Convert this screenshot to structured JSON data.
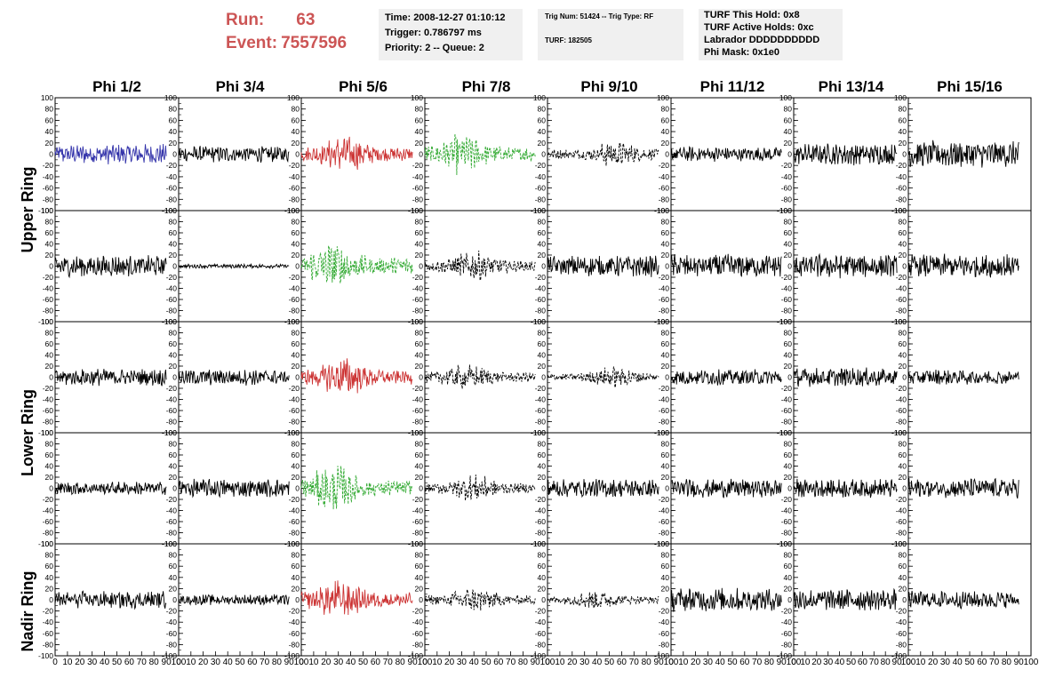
{
  "header": {
    "run_label": "Run:",
    "run_value": "63",
    "event_label": "Event:",
    "event_value": "7557596"
  },
  "info_box_1": {
    "time": "Time: 2008-12-27 01:10:12",
    "trigger": "Trigger: 0.786797 ms",
    "priority": "Priority: 2 -- Queue: 2"
  },
  "info_box_2": {
    "trig": "Trig Num: 51424 -- Trig Type: RF",
    "turf": "TURF: 182505"
  },
  "info_box_3": {
    "hold": "TURF This Hold: 0x8",
    "active": "TURF Active Holds: 0xc",
    "labrador": "Labrador DDDDDDDDDD",
    "mask": "Phi Mask: 0x1e0"
  },
  "colors": {
    "blue": "#3333aa",
    "red": "#cc3333",
    "green": "#33aa33",
    "black": "#000000"
  },
  "chart_data": {
    "type": "line",
    "column_titles": [
      "Phi 1/2",
      "Phi 3/4",
      "Phi 5/6",
      "Phi 7/8",
      "Phi 9/10",
      "Phi 11/12",
      "Phi 13/14",
      "Phi 15/16"
    ],
    "row_labels": [
      "Upper Ring",
      "Lower Ring",
      "Nadir Ring"
    ],
    "ylim": [
      -100,
      100
    ],
    "xlim": [
      0,
      100
    ],
    "y_tick_labels": [
      "100",
      "80",
      "60",
      "40",
      "20",
      "0",
      "-20",
      "-40",
      "-60",
      "-80",
      "-100"
    ],
    "x_tick_labels": [
      "0",
      "10",
      "20",
      "30",
      "40",
      "50",
      "60",
      "70",
      "80",
      "90",
      "100"
    ],
    "panel_rows": 5,
    "panel_cols": 8,
    "waveforms": [
      [
        {
          "style": "blue",
          "dash": false,
          "amp": 15,
          "burst": 0
        },
        {
          "style": "black",
          "dash": false,
          "amp": 12,
          "burst": 0
        },
        {
          "style": "red",
          "dash": false,
          "amp": 22,
          "burst": 35
        },
        {
          "style": "green",
          "dash": true,
          "amp": 24,
          "burst": 30
        },
        {
          "style": "black",
          "dash": true,
          "amp": 16,
          "burst": 55
        },
        {
          "style": "black",
          "dash": false,
          "amp": 11,
          "burst": 0
        },
        {
          "style": "black",
          "dash": false,
          "amp": 16,
          "burst": 0
        },
        {
          "style": "black",
          "dash": false,
          "amp": 20,
          "burst": 0
        }
      ],
      [
        {
          "style": "black",
          "dash": false,
          "amp": 16,
          "burst": 0
        },
        {
          "style": "black",
          "dash": false,
          "amp": 3,
          "burst": 0
        },
        {
          "style": "green",
          "dash": true,
          "amp": 30,
          "burst": 25
        },
        {
          "style": "black",
          "dash": true,
          "amp": 18,
          "burst": 40
        },
        {
          "style": "black",
          "dash": false,
          "amp": 16,
          "burst": 0
        },
        {
          "style": "black",
          "dash": false,
          "amp": 18,
          "burst": 0
        },
        {
          "style": "black",
          "dash": false,
          "amp": 18,
          "burst": 0
        },
        {
          "style": "black",
          "dash": false,
          "amp": 18,
          "burst": 0
        }
      ],
      [
        {
          "style": "black",
          "dash": false,
          "amp": 13,
          "burst": 0
        },
        {
          "style": "black",
          "dash": false,
          "amp": 12,
          "burst": 0
        },
        {
          "style": "red",
          "dash": false,
          "amp": 24,
          "burst": 35
        },
        {
          "style": "black",
          "dash": true,
          "amp": 16,
          "burst": 35
        },
        {
          "style": "black",
          "dash": true,
          "amp": 13,
          "burst": 55
        },
        {
          "style": "black",
          "dash": false,
          "amp": 12,
          "burst": 0
        },
        {
          "style": "black",
          "dash": false,
          "amp": 14,
          "burst": 0
        },
        {
          "style": "black",
          "dash": false,
          "amp": 12,
          "burst": 0
        }
      ],
      [
        {
          "style": "black",
          "dash": false,
          "amp": 10,
          "burst": 0
        },
        {
          "style": "black",
          "dash": false,
          "amp": 14,
          "burst": 0
        },
        {
          "style": "green",
          "dash": true,
          "amp": 28,
          "burst": 25
        },
        {
          "style": "black",
          "dash": true,
          "amp": 16,
          "burst": 40
        },
        {
          "style": "black",
          "dash": false,
          "amp": 14,
          "burst": 0
        },
        {
          "style": "black",
          "dash": false,
          "amp": 14,
          "burst": 0
        },
        {
          "style": "black",
          "dash": false,
          "amp": 14,
          "burst": 0
        },
        {
          "style": "black",
          "dash": false,
          "amp": 15,
          "burst": 0
        }
      ],
      [
        {
          "style": "black",
          "dash": false,
          "amp": 13,
          "burst": 0
        },
        {
          "style": "black",
          "dash": false,
          "amp": 8,
          "burst": 0
        },
        {
          "style": "red",
          "dash": false,
          "amp": 24,
          "burst": 30
        },
        {
          "style": "black",
          "dash": true,
          "amp": 15,
          "burst": 40
        },
        {
          "style": "black",
          "dash": true,
          "amp": 12,
          "burst": 40
        },
        {
          "style": "black",
          "dash": false,
          "amp": 18,
          "burst": 0
        },
        {
          "style": "black",
          "dash": false,
          "amp": 16,
          "burst": 0
        },
        {
          "style": "black",
          "dash": false,
          "amp": 13,
          "burst": 0
        }
      ]
    ]
  }
}
